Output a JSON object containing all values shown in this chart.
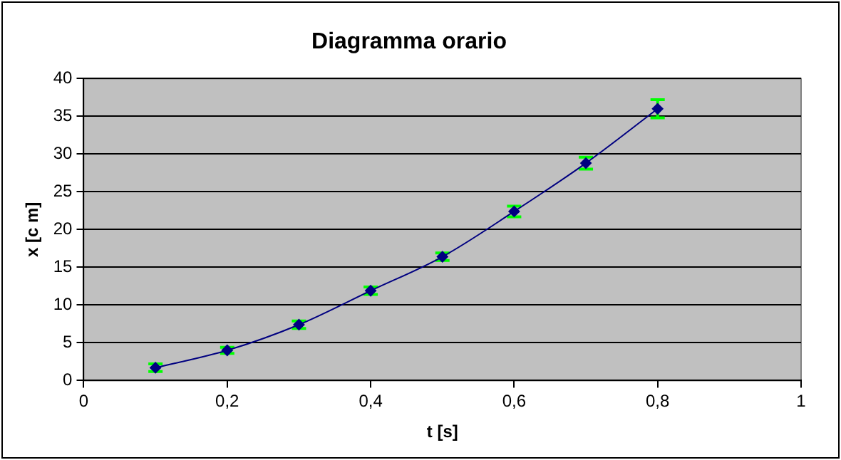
{
  "chart_data": {
    "type": "scatter",
    "title": "Diagramma orario",
    "xlabel": "t [s]",
    "ylabel": "x [c m]",
    "x": [
      0.1,
      0.2,
      0.3,
      0.4,
      0.5,
      0.6,
      0.7,
      0.8
    ],
    "series": [
      {
        "color": "#000080",
        "type": "line",
        "values": [
          1.7,
          4.0,
          7.4,
          11.9,
          16.4,
          22.4,
          28.8,
          36.0
        ],
        "errors": [
          0.5,
          0.4,
          0.5,
          0.5,
          0.5,
          0.7,
          0.8,
          1.2
        ]
      }
    ],
    "xlim": [
      0,
      1
    ],
    "xticks": [
      0,
      {
        "value": 0.2,
        "label": "0,2"
      },
      {
        "value": 0.4,
        "label": "0,4"
      },
      {
        "value": 0.6,
        "label": "0,6"
      },
      {
        "value": 0.8,
        "label": "0,8"
      },
      1
    ],
    "ylim": [
      0,
      40
    ],
    "yticks": [
      0,
      5,
      10,
      15,
      20,
      25,
      30,
      35,
      40
    ],
    "grid": "y",
    "legend": false,
    "marker": "diamond",
    "line_style": "solid"
  }
}
